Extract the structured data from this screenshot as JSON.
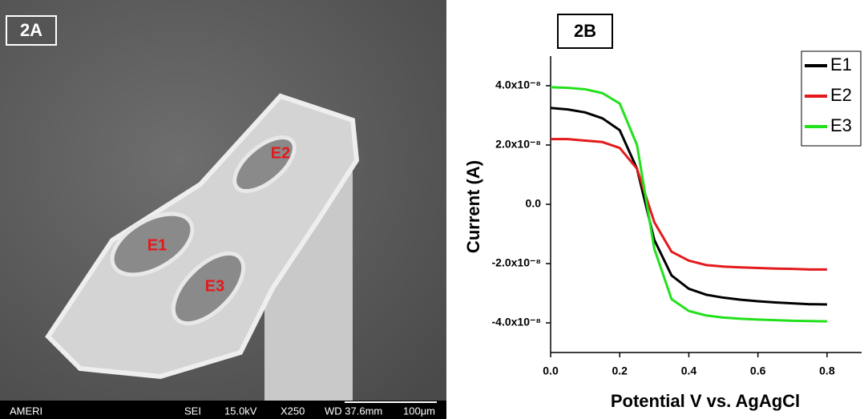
{
  "sem_image": {
    "panel_label": "2A",
    "electrode_labels": [
      "E1",
      "E2",
      "E3"
    ],
    "footer": [
      "AMERI",
      "SEI",
      "15.0kV",
      "X250",
      "WD 37.6mm",
      "100μm"
    ]
  },
  "chart_data": {
    "type": "line",
    "panel_label": "2B",
    "x_label": "Potential V vs. AgAgCl",
    "y_label": "Current (A)",
    "x": [
      0,
      0.05,
      0.1,
      0.15,
      0.2,
      0.25,
      0.3,
      0.35,
      0.4,
      0.45,
      0.5,
      0.55,
      0.6,
      0.65,
      0.7,
      0.75,
      0.8
    ],
    "series": [
      {
        "name": "E1",
        "color": "#000000",
        "values": [
          3.25e-08,
          3.2e-08,
          3.1e-08,
          2.9e-08,
          2.5e-08,
          1.2e-08,
          -1.2e-08,
          -2.4e-08,
          -2.85e-08,
          -3.05e-08,
          -3.15e-08,
          -3.22e-08,
          -3.27e-08,
          -3.31e-08,
          -3.34e-08,
          -3.37e-08,
          -3.38e-08
        ]
      },
      {
        "name": "E2",
        "color": "#e3191c",
        "values": [
          2.2e-08,
          2.2e-08,
          2.15e-08,
          2.1e-08,
          1.9e-08,
          1.2e-08,
          -6e-09,
          -1.6e-08,
          -1.9e-08,
          -2.05e-08,
          -2.1e-08,
          -2.13e-08,
          -2.15e-08,
          -2.17e-08,
          -2.18e-08,
          -2.2e-08,
          -2.2e-08
        ]
      },
      {
        "name": "E3",
        "color": "#22e01c",
        "values": [
          3.95e-08,
          3.93e-08,
          3.88e-08,
          3.75e-08,
          3.4e-08,
          2e-08,
          -1.5e-08,
          -3.2e-08,
          -3.6e-08,
          -3.75e-08,
          -3.82e-08,
          -3.86e-08,
          -3.89e-08,
          -3.91e-08,
          -3.93e-08,
          -3.94e-08,
          -3.95e-08
        ]
      }
    ],
    "xlim": [
      0,
      0.9
    ],
    "ylim": [
      -5e-08,
      5e-08
    ],
    "xticks": [
      {
        "value": 0,
        "label": "0.0"
      },
      0.2,
      0.4,
      0.6,
      0.8
    ],
    "yticks": [
      {
        "value": -4e-08,
        "label": "-4.0x10⁻⁸"
      },
      {
        "value": -2e-08,
        "label": "-2.0x10⁻⁸"
      },
      {
        "value": 0,
        "label": "0.0"
      },
      {
        "value": 2e-08,
        "label": "2.0x10⁻⁸"
      },
      {
        "value": 4e-08,
        "label": "4.0x10⁻⁸"
      }
    ],
    "legend": "upper-right",
    "grid": false
  }
}
